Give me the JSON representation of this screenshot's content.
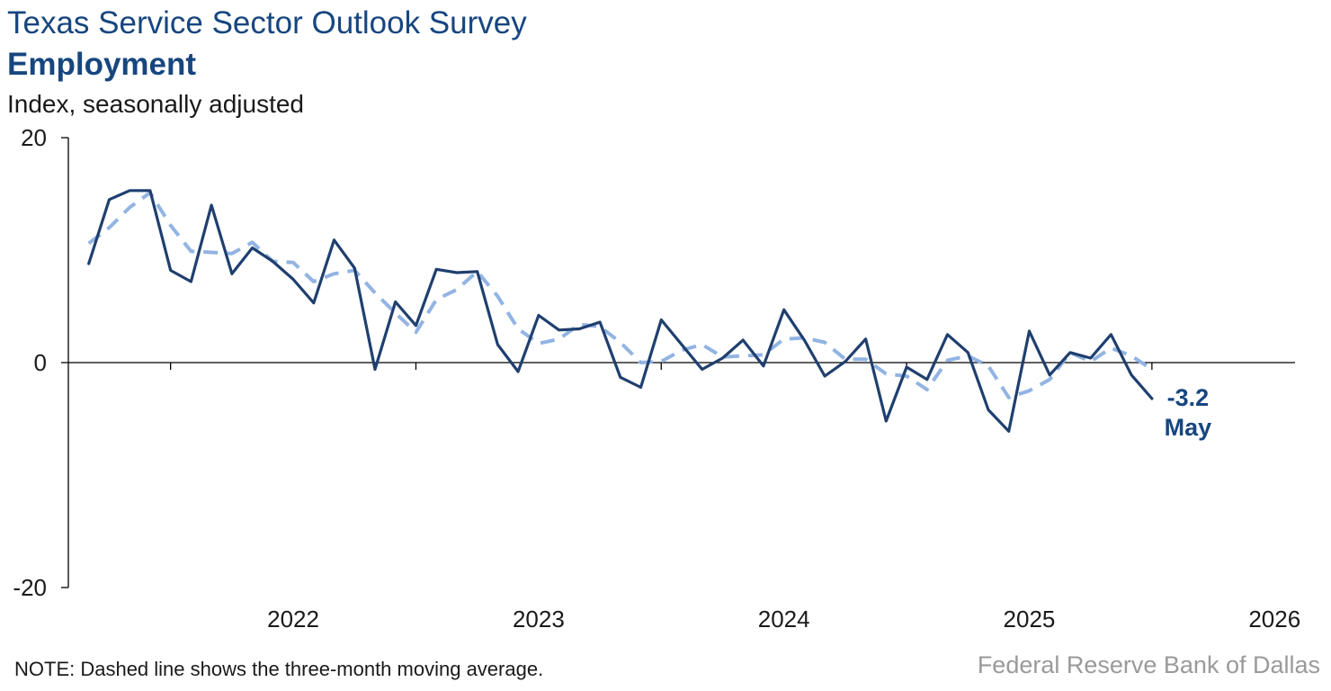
{
  "header": {
    "title": "Texas Service Sector Outlook Survey",
    "subtitle": "Employment",
    "units": "Index, seasonally adjusted"
  },
  "footer": {
    "note": "NOTE: Dashed line shows the three-month moving average.",
    "source": "Federal Reserve Bank of Dallas"
  },
  "colors": {
    "index_line": "#1f3f6e",
    "moving_average": "#92b4e3",
    "axis": "#000000",
    "title": "#17467f"
  },
  "chart_data": {
    "type": "line",
    "title": "Employment",
    "ylabel": "Index, seasonally adjusted",
    "ylim": [
      -20,
      20
    ],
    "y_ticks": [
      -20,
      0,
      20
    ],
    "x_start": "2021-09",
    "xlim": [
      "2021-08",
      "2026-08"
    ],
    "year_labels": [
      "2022",
      "2023",
      "2024",
      "2025",
      "2026"
    ],
    "series": [
      {
        "style": "solid",
        "values": [
          8.8,
          14.5,
          15.3,
          15.3,
          8.2,
          7.2,
          14.0,
          7.9,
          10.2,
          9.0,
          7.4,
          5.3,
          10.9,
          8.4,
          -0.6,
          5.4,
          3.3,
          8.3,
          8.0,
          8.1,
          1.6,
          -0.8,
          4.2,
          2.9,
          3.0,
          3.6,
          -1.3,
          -2.2,
          3.8,
          1.6,
          -0.6,
          0.4,
          2.0,
          -0.3,
          4.7,
          2.0,
          -1.2,
          0.1,
          2.1,
          -5.2,
          -0.4,
          -1.5,
          2.5,
          0.9,
          -4.2,
          -6.1,
          2.8,
          -1.1,
          0.9,
          0.4,
          2.5,
          -1.1,
          -3.2
        ]
      },
      {
        "style": "dashed",
        "values": [
          10.6,
          12.0,
          13.8,
          15.1,
          12.2,
          9.9,
          9.8,
          9.7,
          10.7,
          9.0,
          8.9,
          7.2,
          7.9,
          8.2,
          6.2,
          4.4,
          2.7,
          5.6,
          6.5,
          8.1,
          5.9,
          3.0,
          1.7,
          2.1,
          3.4,
          3.2,
          1.8,
          0.0,
          0.1,
          1.1,
          1.6,
          0.5,
          0.6,
          0.7,
          2.1,
          2.2,
          1.8,
          0.3,
          0.3,
          -1.0,
          -1.2,
          -2.4,
          0.2,
          0.6,
          -0.3,
          -3.1,
          -2.5,
          -1.5,
          0.9,
          0.1,
          1.3,
          0.6,
          -0.6
        ]
      }
    ],
    "end_label": {
      "value": "-3.2",
      "month": "May"
    }
  }
}
